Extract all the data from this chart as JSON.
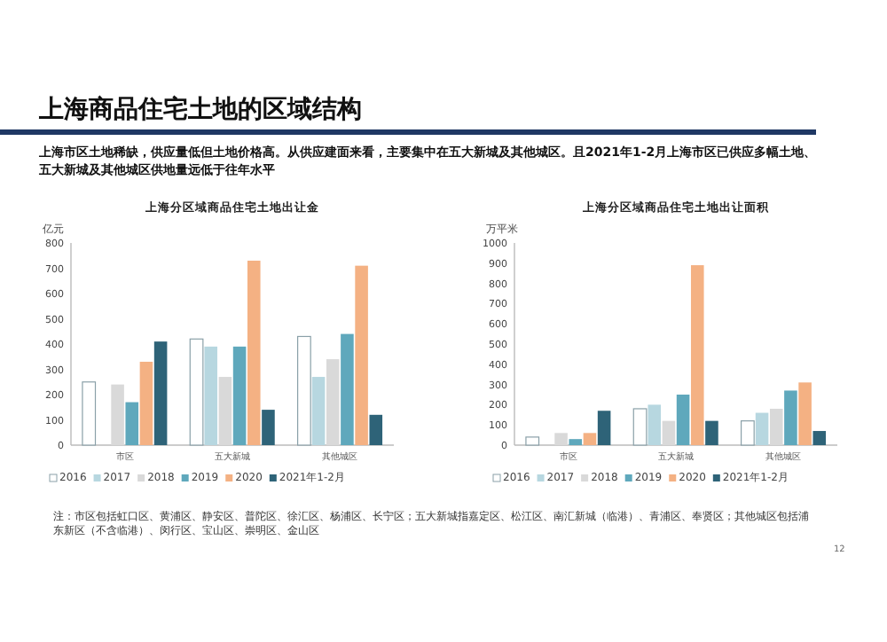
{
  "chart_data": [
    {
      "type": "other",
      "title": "上海商品住宅土地的区域结构",
      "subtitle": "上海市区土地稀缺，供应量低但土地价格高。从供应建面来看，主要集中在五大新城及其他城区。且2021年1-2月上海市区已供应多幅土地、五大新城及其他城区供地量远低于往年水平",
      "annotations": [
        "注：市区包括虹口区、黄浦区、静安区、普陀区、徐汇区、杨浦区、长宁区；五大新城指嘉定区、松江区、南汇新城（临港）、青浦区、奉贤区；其他城区包括浦东新区（不含临港）、闵行区、宝山区、崇明区、金山区",
        "12"
      ]
    },
    {
      "type": "bar",
      "title": "上海分区域商品住宅土地出让金",
      "ylabel": "亿元",
      "categories": [
        "市区",
        "五大新城",
        "其他城区"
      ],
      "ylim": [
        0,
        800
      ],
      "yticks": [
        0,
        100,
        200,
        300,
        400,
        500,
        600,
        700,
        800
      ],
      "legend": "bottom",
      "series": [
        {
          "name": "2016",
          "color": "#ffffff",
          "values": [
            250,
            420,
            430
          ]
        },
        {
          "name": "2017",
          "color": "#b7d7e0",
          "values": [
            null,
            390,
            270
          ]
        },
        {
          "name": "2018",
          "color": "#d9d9d9",
          "values": [
            240,
            270,
            340
          ]
        },
        {
          "name": "2019",
          "color": "#5fa8bc",
          "values": [
            170,
            390,
            440
          ]
        },
        {
          "name": "2020",
          "color": "#f4b183",
          "values": [
            330,
            730,
            710
          ]
        },
        {
          "name": "2021年1-2月",
          "color": "#2e6378",
          "values": [
            410,
            140,
            120
          ]
        }
      ]
    },
    {
      "type": "bar",
      "title": "上海分区域商品住宅土地出让面积",
      "ylabel": "万平米",
      "categories": [
        "市区",
        "五大新城",
        "其他城区"
      ],
      "ylim": [
        0,
        1000
      ],
      "yticks": [
        0,
        100,
        200,
        300,
        400,
        500,
        600,
        700,
        800,
        900,
        1000
      ],
      "legend": "bottom",
      "series": [
        {
          "name": "2016",
          "color": "#ffffff",
          "values": [
            40,
            180,
            120
          ]
        },
        {
          "name": "2017",
          "color": "#b7d7e0",
          "values": [
            null,
            200,
            160
          ]
        },
        {
          "name": "2018",
          "color": "#d9d9d9",
          "values": [
            60,
            120,
            180
          ]
        },
        {
          "name": "2019",
          "color": "#5fa8bc",
          "values": [
            30,
            250,
            270
          ]
        },
        {
          "name": "2020",
          "color": "#f4b183",
          "values": [
            60,
            890,
            310
          ]
        },
        {
          "name": "2021年1-2月",
          "color": "#2e6378",
          "values": [
            170,
            120,
            70
          ]
        }
      ]
    }
  ]
}
